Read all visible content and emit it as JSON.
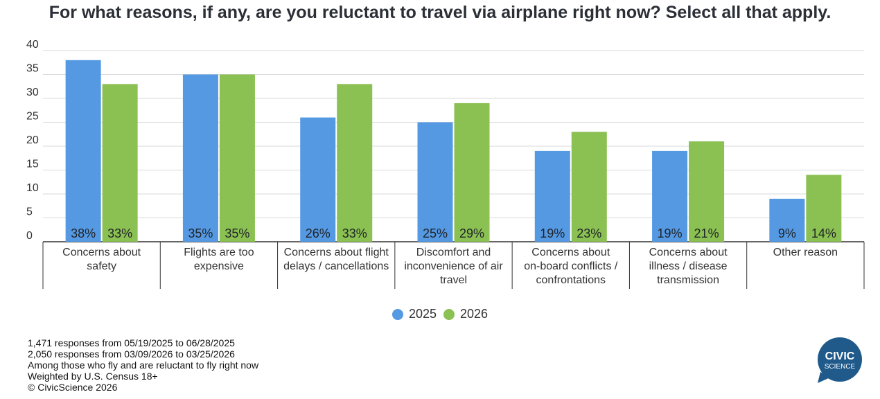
{
  "chart_data": {
    "type": "bar",
    "title": "For what reasons, if any, are you reluctant to travel via airplane right now? Select all that apply.",
    "categories": [
      [
        "Concerns about",
        "safety"
      ],
      [
        "Flights are too",
        "expensive"
      ],
      [
        "Concerns about flight",
        "delays / cancellations"
      ],
      [
        "Discomfort and",
        "inconvenience of air",
        "travel"
      ],
      [
        "Concerns about",
        "on-board conflicts /",
        "confrontations"
      ],
      [
        "Concerns about",
        "illness / disease",
        "transmission"
      ],
      [
        "Other reason"
      ]
    ],
    "series": [
      {
        "name": "2025",
        "color": "#5599e3",
        "values": [
          38,
          35,
          26,
          25,
          19,
          19,
          9
        ],
        "labels": [
          "38%",
          "35%",
          "26%",
          "25%",
          "19%",
          "19%",
          "9%"
        ]
      },
      {
        "name": "2026",
        "color": "#8bc052",
        "values": [
          33,
          35,
          33,
          29,
          23,
          21,
          14
        ],
        "labels": [
          "33%",
          "35%",
          "33%",
          "29%",
          "23%",
          "21%",
          "14%"
        ]
      }
    ],
    "ylim": [
      0,
      40
    ],
    "yticks": [
      "0",
      "5",
      "10",
      "15",
      "20",
      "25",
      "30",
      "35",
      "40"
    ],
    "xlabel": "",
    "ylabel": "",
    "legend_position": "bottom-center",
    "grid": true
  },
  "notes": [
    "1,471 responses from 05/19/2025 to 06/28/2025",
    "2,050 responses from 03/09/2026 to 03/25/2026",
    "Among those who fly and are reluctant to fly right now",
    "Weighted by U.S. Census 18+",
    "© CivicScience 2026"
  ],
  "logo": {
    "line1": "CIVIC",
    "line2": "SCIENCE",
    "color": "#1f5a8a"
  }
}
